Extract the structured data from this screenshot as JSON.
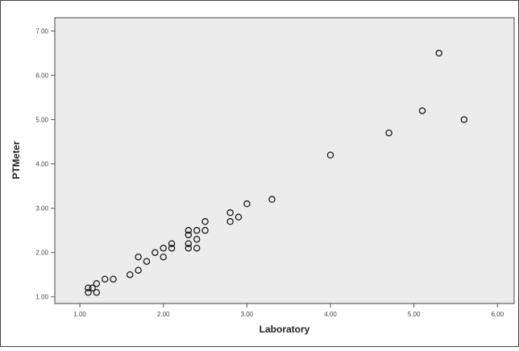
{
  "chart_data": {
    "type": "scatter",
    "title": "",
    "xlabel": "Laboratory",
    "ylabel": "PTMeter",
    "xlim": [
      0.7,
      6.2
    ],
    "ylim": [
      0.85,
      7.3
    ],
    "x_ticks": [
      "1.00",
      "2.00",
      "3.00",
      "4.00",
      "5.00",
      "6.00"
    ],
    "y_ticks": [
      "1.00",
      "2.00",
      "3.00",
      "4.00",
      "5.00",
      "6.00",
      "7.00"
    ],
    "grid": false,
    "colors": {
      "plot_background": "#ececec",
      "marker_stroke": "#1a1a1a",
      "axis": "#555555",
      "frame": "#444444"
    },
    "points": [
      {
        "x": 1.1,
        "y": 1.1
      },
      {
        "x": 1.1,
        "y": 1.2
      },
      {
        "x": 1.15,
        "y": 1.2
      },
      {
        "x": 1.2,
        "y": 1.1
      },
      {
        "x": 1.2,
        "y": 1.3
      },
      {
        "x": 1.3,
        "y": 1.4
      },
      {
        "x": 1.4,
        "y": 1.4
      },
      {
        "x": 1.6,
        "y": 1.5
      },
      {
        "x": 1.7,
        "y": 1.6
      },
      {
        "x": 1.7,
        "y": 1.9
      },
      {
        "x": 1.8,
        "y": 1.8
      },
      {
        "x": 1.9,
        "y": 2.0
      },
      {
        "x": 2.0,
        "y": 1.9
      },
      {
        "x": 2.0,
        "y": 2.1
      },
      {
        "x": 2.1,
        "y": 2.1
      },
      {
        "x": 2.1,
        "y": 2.2
      },
      {
        "x": 2.3,
        "y": 2.1
      },
      {
        "x": 2.3,
        "y": 2.2
      },
      {
        "x": 2.3,
        "y": 2.4
      },
      {
        "x": 2.3,
        "y": 2.5
      },
      {
        "x": 2.4,
        "y": 2.1
      },
      {
        "x": 2.4,
        "y": 2.3
      },
      {
        "x": 2.4,
        "y": 2.5
      },
      {
        "x": 2.5,
        "y": 2.5
      },
      {
        "x": 2.5,
        "y": 2.7
      },
      {
        "x": 2.8,
        "y": 2.7
      },
      {
        "x": 2.8,
        "y": 2.9
      },
      {
        "x": 2.9,
        "y": 2.8
      },
      {
        "x": 3.0,
        "y": 3.1
      },
      {
        "x": 3.3,
        "y": 3.2
      },
      {
        "x": 4.0,
        "y": 4.2
      },
      {
        "x": 4.7,
        "y": 4.7
      },
      {
        "x": 5.1,
        "y": 5.2
      },
      {
        "x": 5.3,
        "y": 6.5
      },
      {
        "x": 5.6,
        "y": 5.0
      }
    ]
  }
}
